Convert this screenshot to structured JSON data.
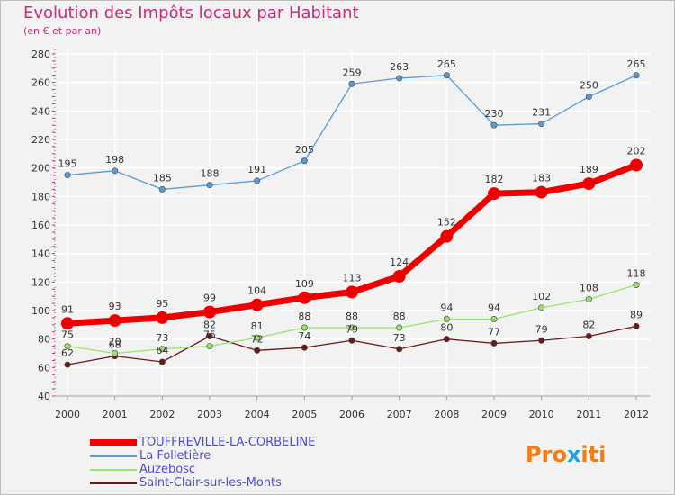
{
  "title": "Evolution des Impôts locaux par Habitant",
  "subtitle": "(en € et par an)",
  "logo": {
    "text": "Proxiti",
    "colors": [
      "#f07d1a",
      "#f07d1a",
      "#f07d1a",
      "#1aa3d9",
      "#f07d1a",
      "#f07d1a",
      "#f07d1a"
    ]
  },
  "chart_data": {
    "type": "line",
    "x": [
      "2000",
      "2001",
      "2002",
      "2003",
      "2004",
      "2005",
      "2006",
      "2007",
      "2008",
      "2009",
      "2010",
      "2011",
      "2012"
    ],
    "ylim": [
      40,
      280
    ],
    "yticks": [
      40,
      60,
      80,
      100,
      120,
      140,
      160,
      180,
      200,
      220,
      240,
      260,
      280
    ],
    "grid": true,
    "legend_position": "bottom-left",
    "series": [
      {
        "name": "TOUFFREVILLE-LA-CORBELINE",
        "color": "#ee0000",
        "emphasis": true,
        "values": [
          91,
          93,
          95,
          99,
          104,
          109,
          113,
          124,
          152,
          182,
          183,
          189,
          202
        ]
      },
      {
        "name": "La Folletière",
        "color": "#5b9bd5",
        "values": [
          195,
          198,
          185,
          188,
          191,
          205,
          259,
          263,
          265,
          230,
          231,
          250,
          265
        ]
      },
      {
        "name": "Auzebosc",
        "color": "#99e26b",
        "values": [
          75,
          70,
          73,
          75,
          81,
          88,
          88,
          88,
          94,
          94,
          102,
          108,
          118
        ]
      },
      {
        "name": "Saint-Clair-sur-les-Monts",
        "color": "#6b1a1a",
        "values": [
          62,
          68,
          64,
          82,
          72,
          74,
          79,
          73,
          80,
          77,
          79,
          82,
          89
        ]
      }
    ]
  }
}
